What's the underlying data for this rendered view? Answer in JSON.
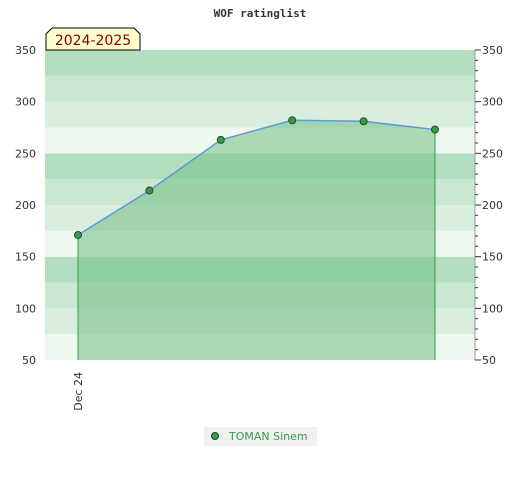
{
  "chart_data": {
    "type": "area",
    "title": "WOF ratinglist",
    "season_label": "2024-2025",
    "ylim": [
      50,
      350
    ],
    "yticks": [
      "50",
      "100",
      "150",
      "200",
      "250",
      "300",
      "350"
    ],
    "x_categories": [
      "Dec 24"
    ],
    "series": [
      {
        "name": "TOMAN Sinem",
        "values": [
          171,
          214,
          263,
          282,
          281,
          273
        ]
      }
    ],
    "colors": {
      "band_dark": "#b3dec0",
      "band_mid": "#c9e7d1",
      "band_light": "#daeedf",
      "band_lightest": "#eff7f1",
      "area_fill": "#72bf84",
      "line": "#5b9bd5",
      "marker": "#3a9a4a",
      "legend_text": "#3a9a4a",
      "season_bg": "#ffffcc",
      "season_text": "#8b0000"
    },
    "legend_position": "bottom-center",
    "grid": false
  }
}
